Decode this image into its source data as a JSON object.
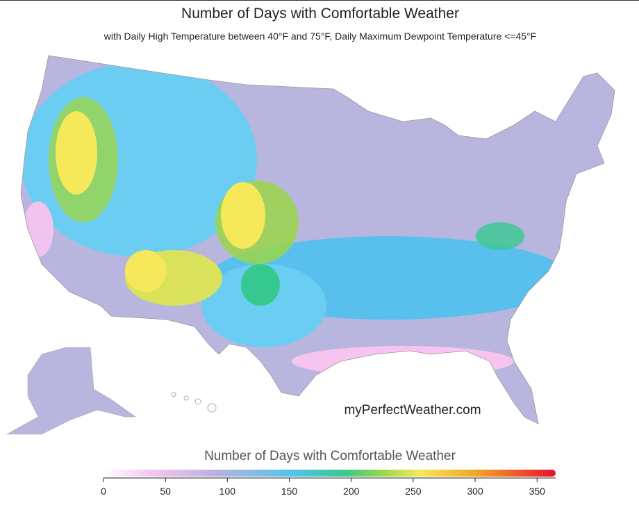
{
  "header": {
    "title": "Number of Days with Comfortable Weather",
    "subtitle": "with Daily High Temperature between 40°F and 75°F, Daily Maximum Dewpoint Temperature <=45°F"
  },
  "map": {
    "watermark": "myPerfectWeather.com"
  },
  "legend": {
    "title": "Number of Days with Comfortable Weather",
    "range": [
      0,
      365
    ],
    "ticks": [
      0,
      50,
      100,
      150,
      200,
      250,
      300,
      350
    ],
    "color_stops": [
      {
        "value": 0,
        "color": "#ffffff"
      },
      {
        "value": 40,
        "color": "#f7c4f0"
      },
      {
        "value": 90,
        "color": "#b9b3de"
      },
      {
        "value": 150,
        "color": "#55c3ee"
      },
      {
        "value": 195,
        "color": "#36c98f"
      },
      {
        "value": 225,
        "color": "#9bd64a"
      },
      {
        "value": 255,
        "color": "#f5e85a"
      },
      {
        "value": 300,
        "color": "#f5a623"
      },
      {
        "value": 365,
        "color": "#e8112d"
      }
    ]
  }
}
